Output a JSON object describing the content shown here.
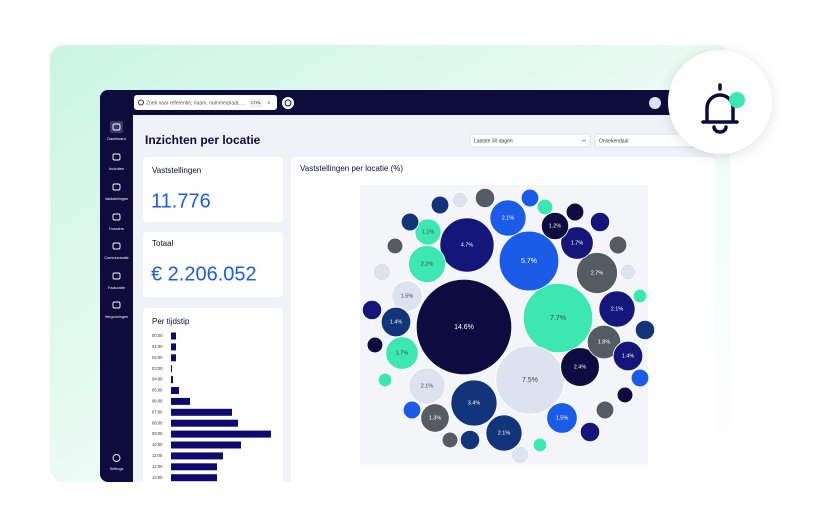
{
  "topbar": {
    "search": "Zoek naar referentie, naam, nummerplaat, ...",
    "shortcut": "CTRL",
    "key": "K"
  },
  "sidebar": {
    "items": [
      "Dashboard",
      "Inzichten",
      "Vaststellingen",
      "Dossiers",
      "Communicatie",
      "Facturatie",
      "Vergunningen"
    ],
    "settings": "Settings"
  },
  "header": {
    "title": "Inzichten per locatie",
    "period": "Laatste 30 dagen",
    "location": "Onsekendaal"
  },
  "cards": [
    {
      "title": "Vaststellingen",
      "value": "11.776"
    },
    {
      "title": "Totaal",
      "value": "€ 2.206.052"
    }
  ],
  "chart_data": [
    {
      "type": "bar",
      "orientation": "horizontal",
      "title": "Per tijdstip",
      "categories": [
        "00:00",
        "01:00",
        "02:00",
        "03:00",
        "04:00",
        "05:00",
        "06:00",
        "07:00",
        "08:00",
        "09:00",
        "10:00",
        "11:00",
        "12:00",
        "13:00",
        "14:00"
      ],
      "values": [
        5,
        5,
        5,
        1,
        2,
        8,
        19,
        61,
        67,
        100,
        70,
        52,
        46,
        46,
        46
      ],
      "color": "#0d0a6e"
    },
    {
      "type": "bubble",
      "title": "Vaststellingen per locatie (%)",
      "values": [
        14.6,
        7.7,
        7.5,
        5.7,
        4.7,
        3.4,
        2.7,
        2.4,
        2.2,
        2.1,
        2.1,
        2.1,
        2.1,
        1.8,
        1.7,
        1.7,
        1.5,
        1.5,
        1.4,
        1.4,
        1.3,
        1.2,
        1.1,
        0.5,
        0.4,
        0.6,
        0.5,
        0.4,
        0.5,
        0.6,
        0.5,
        0.4,
        0.3,
        0.6,
        0.5,
        0.4,
        0.5,
        0.6,
        0.3,
        0.5,
        0.6,
        0.4,
        0.5,
        0.3,
        0.4,
        0.6,
        0.5,
        0.4,
        0.5
      ],
      "value_labels": [
        "14.6%",
        "7.7%",
        "7.5%",
        "5.7%",
        "4.7%",
        "3.4%",
        "2.7%",
        "2.4%",
        "2.2%",
        "2.1%",
        "2.1%",
        "2.1%",
        "2.1%",
        "1.8%",
        "1.7%",
        "1.7%",
        "1.5%",
        "1.5%",
        "1.4%",
        "1.4%",
        "1.3%",
        "1.2%",
        "1.1%",
        null,
        null,
        null,
        null,
        null,
        null,
        null,
        null,
        null,
        null,
        null,
        null,
        null,
        null,
        null,
        null,
        null,
        null,
        null,
        null,
        null,
        null,
        null,
        null,
        null,
        null
      ],
      "colors": [
        "#0d0b3f",
        "#3de8b0",
        "#dde3ee",
        "#1a5ce8",
        "#14167a",
        "#12347a",
        "#555b63",
        "#0d0b3f",
        "#3de8b0",
        "#dde3ee",
        "#14167a",
        "#12347a",
        "#1a5ce8",
        "#555b63",
        "#3de8b0",
        "#14167a",
        "#dde3ee",
        "#1a5ce8",
        "#12347a",
        "#14167a",
        "#555b63",
        "#0d0b3f",
        "#3de8b0",
        "#12347a",
        "#dde3ee",
        "#555b63",
        "#1a5ce8",
        "#3de8b0",
        "#0d0b3f",
        "#14167a",
        "#555b63",
        "#dde3ee",
        "#3de8b0",
        "#12347a",
        "#1a5ce8",
        "#0d0b3f",
        "#555b63",
        "#14167a",
        "#3de8b0",
        "#dde3ee",
        "#12347a",
        "#555b63",
        "#1a5ce8",
        "#3de8b0",
        "#0d0b3f",
        "#14167a",
        "#dde3ee",
        "#555b63",
        "#12347a"
      ]
    }
  ]
}
